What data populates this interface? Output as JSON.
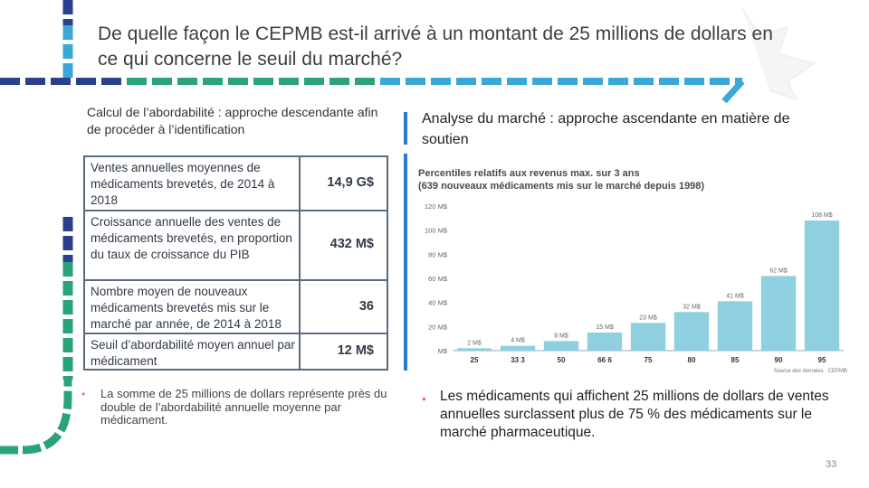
{
  "slide": {
    "title": "De quelle façon le CEPMB est-il arrivé à un montant de 25 millions de dollars en ce qui concerne le seuil du marché?",
    "page_number": "33"
  },
  "left": {
    "heading": "Calcul de l’abordabilité : approche descendante afin de procéder à l’identification",
    "table": [
      {
        "label": "Ventes annuelles moyennes de médicaments brevetés, de 2014 à 2018",
        "value": "14,9 G$"
      },
      {
        "label": "Croissance annuelle des ventes de médicaments brevetés, en proportion du taux de croissance du PIB",
        "value": "432 M$"
      },
      {
        "label": "Nombre moyen de nouveaux médicaments brevetés mis sur le marché par année, de 2014 à 2018",
        "value": "36"
      },
      {
        "label": "Seuil d’abordabilité moyen annuel par médicament",
        "value": "12 M$"
      }
    ],
    "bullet": "La somme de 25 millions de dollars représente près du double de l’abordabilité annuelle moyenne par médicament."
  },
  "right": {
    "heading": "Analyse du marché : approche ascendante en matière de soutien",
    "bullet": "Les médicaments qui affichent 25 millions de dollars de ventes annuelles surclassent plus de 75 % des médicaments sur le marché pharmaceutique."
  },
  "chart_data": {
    "type": "bar",
    "title": "Percentiles relatifs aux revenus max. sur 3 ans",
    "subtitle": "(639 nouveaux médicaments mis sur le marché depuis 1998)",
    "categories": [
      "25",
      "33.3",
      "50",
      "66.6",
      "75",
      "80",
      "85",
      "90",
      "95"
    ],
    "category_labels": [
      "25",
      "33 3",
      "50",
      "66 6",
      "75",
      "80",
      "85",
      "90",
      "95"
    ],
    "values": [
      2,
      4,
      8,
      15,
      23,
      32,
      41,
      62,
      108
    ],
    "value_labels": [
      "2 M$",
      "4 M$",
      "8 M$",
      "15 M$",
      "23 M$",
      "32 M$",
      "41 M$",
      "62 M$",
      "108 M$"
    ],
    "y_ticks": [
      0,
      20,
      40,
      60,
      80,
      100,
      120
    ],
    "y_tick_labels": [
      "M$",
      "20 M$",
      "40 M$",
      "60 M$",
      "80 M$",
      "100 M$",
      "120 M$"
    ],
    "ylim": [
      0,
      120
    ],
    "source": "Source des données : CEPMB",
    "bar_color": "#8fd0e0",
    "grid": false
  }
}
